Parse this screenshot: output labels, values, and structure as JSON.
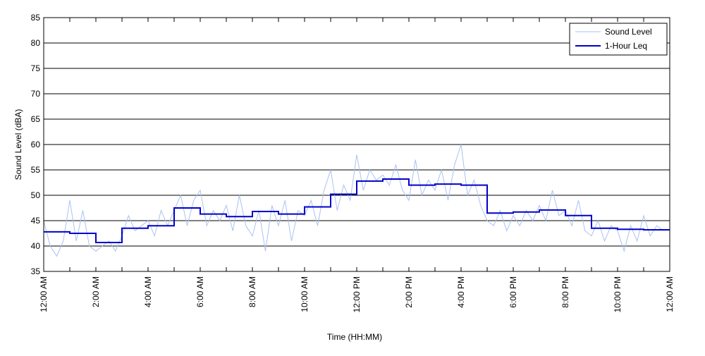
{
  "chart_data": {
    "type": "line",
    "xlabel": "Time (HH:MM)",
    "ylabel": "Sound Level (dBA)",
    "xlim": [
      0,
      24
    ],
    "xticks": [
      {
        "value": 0,
        "label": "12:00 AM"
      },
      {
        "value": 2,
        "label": "2:00 AM"
      },
      {
        "value": 4,
        "label": "4:00 AM"
      },
      {
        "value": 6,
        "label": "6:00 AM"
      },
      {
        "value": 8,
        "label": "8:00 AM"
      },
      {
        "value": 10,
        "label": "10:00 AM"
      },
      {
        "value": 12,
        "label": "12:00 PM"
      },
      {
        "value": 14,
        "label": "2:00 PM"
      },
      {
        "value": 16,
        "label": "4:00 PM"
      },
      {
        "value": 18,
        "label": "6:00 PM"
      },
      {
        "value": 20,
        "label": "8:00 PM"
      },
      {
        "value": 22,
        "label": "10:00 PM"
      },
      {
        "value": 24,
        "label": "12:00 AM"
      }
    ],
    "xminor_ticks": [
      1,
      3,
      5,
      7,
      9,
      11,
      13,
      15,
      17,
      19,
      21,
      23
    ],
    "ylim": [
      35,
      85
    ],
    "yticks": [
      35,
      40,
      45,
      50,
      55,
      60,
      65,
      70,
      75,
      80,
      85
    ],
    "grid": true,
    "legend": "upper right",
    "series": [
      {
        "name": "Sound Level",
        "color": "#a9c2f2",
        "style": "line",
        "x": [
          0,
          0.25,
          0.5,
          0.75,
          1,
          1.25,
          1.5,
          1.75,
          2,
          2.25,
          2.5,
          2.75,
          3,
          3.25,
          3.5,
          3.75,
          4,
          4.25,
          4.5,
          4.75,
          5,
          5.25,
          5.5,
          5.75,
          6,
          6.25,
          6.5,
          6.75,
          7,
          7.25,
          7.5,
          7.75,
          8,
          8.25,
          8.5,
          8.75,
          9,
          9.25,
          9.5,
          9.75,
          10,
          10.25,
          10.5,
          10.75,
          11,
          11.25,
          11.5,
          11.75,
          12,
          12.25,
          12.5,
          12.75,
          13,
          13.25,
          13.5,
          13.75,
          14,
          14.25,
          14.5,
          14.75,
          15,
          15.25,
          15.5,
          15.75,
          16,
          16.25,
          16.5,
          16.75,
          17,
          17.25,
          17.5,
          17.75,
          18,
          18.25,
          18.5,
          18.75,
          19,
          19.25,
          19.5,
          19.75,
          20,
          20.25,
          20.5,
          20.75,
          21,
          21.25,
          21.5,
          21.75,
          22,
          22.25,
          22.5,
          22.75,
          23,
          23.25,
          23.5,
          23.75
        ],
        "values": [
          45,
          40,
          38,
          41,
          49,
          41,
          47,
          40,
          39,
          40,
          41,
          39,
          42,
          46,
          43,
          44,
          45,
          42,
          47,
          44,
          47,
          50,
          44,
          49,
          51,
          44,
          47,
          45,
          48,
          43,
          50,
          44,
          42,
          47,
          39,
          48,
          44,
          49,
          41,
          47,
          46,
          49,
          44,
          51,
          55,
          47,
          52,
          49,
          58,
          51,
          55,
          53,
          54,
          52,
          56,
          51,
          49,
          57,
          50,
          53,
          51,
          55,
          49,
          56,
          60,
          50,
          53,
          48,
          45,
          44,
          47,
          43,
          46,
          44,
          47,
          45,
          48,
          45,
          51,
          46,
          47,
          44,
          49,
          43,
          42,
          45,
          41,
          44,
          43,
          39,
          44,
          41,
          46,
          42,
          44,
          43
        ]
      },
      {
        "name": "1-Hour Leq",
        "color": "#0000cc",
        "style": "step",
        "x": [
          0,
          1,
          2,
          3,
          4,
          5,
          6,
          7,
          8,
          9,
          10,
          11,
          12,
          13,
          14,
          15,
          16,
          17,
          18,
          19,
          20,
          21,
          22,
          23
        ],
        "values": [
          42.8,
          42.5,
          40.7,
          43.5,
          44.0,
          47.5,
          46.3,
          45.8,
          46.8,
          46.3,
          47.7,
          50.2,
          52.8,
          53.2,
          52.0,
          52.2,
          52.0,
          46.5,
          46.7,
          47.1,
          46.0,
          43.5,
          43.3,
          43.2
        ]
      }
    ]
  }
}
